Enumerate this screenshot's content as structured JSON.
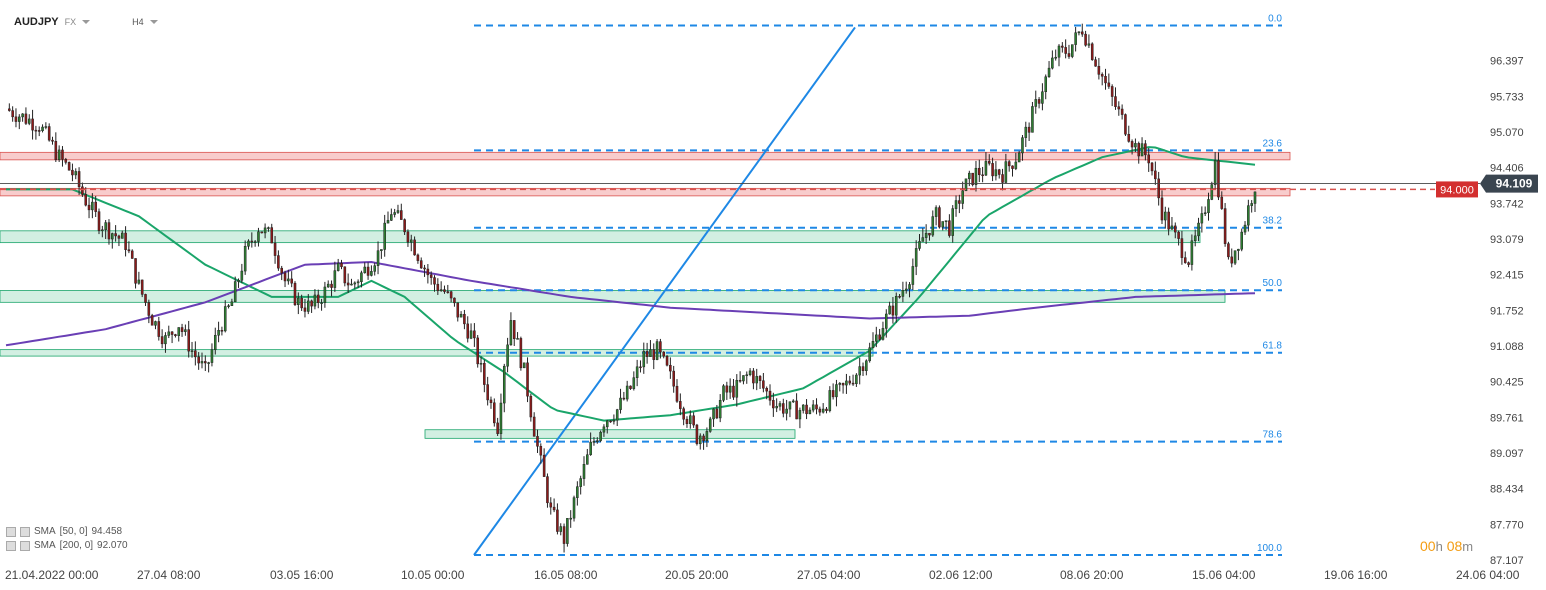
{
  "header": {
    "symbol": "AUDJPY",
    "market": "FX",
    "interval": "H4"
  },
  "price_axis": {
    "labels": [
      "96.397",
      "95.733",
      "95.070",
      "94.406",
      "93.742",
      "93.079",
      "92.415",
      "91.752",
      "91.088",
      "90.425",
      "89.761",
      "89.097",
      "88.434",
      "87.770",
      "87.107"
    ],
    "current_price": "94.109",
    "level_tag": "94.000"
  },
  "time_axis": [
    "21.04.2022  00:00",
    "27.04  08:00",
    "03.05  16:00",
    "10.05  00:00",
    "16.05  08:00",
    "20.05  20:00",
    "27.05  04:00",
    "02.06  12:00",
    "08.06  20:00",
    "15.06  04:00",
    "19.06  16:00",
    "24.06  04:00"
  ],
  "fib_labels": [
    "0.0",
    "23.6",
    "38.2",
    "50.0",
    "61.8",
    "78.6",
    "100.0"
  ],
  "legend": [
    {
      "name": "SMA",
      "params": "[50,  0]",
      "value": "94.458"
    },
    {
      "name": "SMA",
      "params": "[200,  0]",
      "value": "92.070"
    }
  ],
  "timer": {
    "h": "00",
    "h_unit": "h",
    "m": "08",
    "m_unit": "m"
  },
  "colors": {
    "up": "#2e7d32",
    "down": "#8b1a1a",
    "sma50": "#1aa56a",
    "sma200": "#6a3fb5",
    "fib": "#1e88e5",
    "resistance": "#f5b7b7",
    "support": "#bfe8d6"
  },
  "chart_data": {
    "type": "candlestick",
    "symbol": "AUDJPY",
    "interval": "H4",
    "ylim": [
      87.107,
      97.2
    ],
    "current_price": 94.109,
    "horizontal_level": 94.0,
    "close_path": [
      [
        0,
        95.5
      ],
      [
        5,
        95.35
      ],
      [
        10,
        95.2
      ],
      [
        16,
        94.6
      ],
      [
        20,
        94.3
      ],
      [
        24,
        93.8
      ],
      [
        28,
        93.4
      ],
      [
        32,
        93.2
      ],
      [
        36,
        93.0
      ],
      [
        40,
        92.2
      ],
      [
        44,
        91.6
      ],
      [
        48,
        91.2
      ],
      [
        52,
        91.5
      ],
      [
        56,
        91.0
      ],
      [
        60,
        90.6
      ],
      [
        64,
        91.4
      ],
      [
        68,
        91.9
      ],
      [
        72,
        92.8
      ],
      [
        76,
        93.3
      ],
      [
        80,
        93.1
      ],
      [
        84,
        92.3
      ],
      [
        88,
        91.9
      ],
      [
        92,
        91.8
      ],
      [
        96,
        92.1
      ],
      [
        100,
        92.5
      ],
      [
        104,
        92.2
      ],
      [
        108,
        92.5
      ],
      [
        112,
        92.8
      ],
      [
        116,
        93.6
      ],
      [
        120,
        93.3
      ],
      [
        124,
        92.8
      ],
      [
        128,
        92.3
      ],
      [
        132,
        92.1
      ],
      [
        136,
        91.7
      ],
      [
        140,
        91.3
      ],
      [
        144,
        90.4
      ],
      [
        148,
        89.6
      ],
      [
        150,
        90.8
      ],
      [
        152,
        91.6
      ],
      [
        156,
        90.6
      ],
      [
        160,
        89.2
      ],
      [
        164,
        88.0
      ],
      [
        168,
        87.5
      ],
      [
        172,
        88.4
      ],
      [
        176,
        89.2
      ],
      [
        180,
        89.7
      ],
      [
        184,
        89.9
      ],
      [
        188,
        90.3
      ],
      [
        192,
        90.9
      ],
      [
        196,
        91.0
      ],
      [
        200,
        90.5
      ],
      [
        204,
        89.9
      ],
      [
        208,
        89.4
      ],
      [
        212,
        89.6
      ],
      [
        216,
        90.2
      ],
      [
        220,
        90.3
      ],
      [
        224,
        90.6
      ],
      [
        228,
        90.3
      ],
      [
        232,
        90.0
      ],
      [
        236,
        89.9
      ],
      [
        240,
        89.9
      ],
      [
        244,
        89.9
      ],
      [
        248,
        90.1
      ],
      [
        252,
        90.3
      ],
      [
        256,
        90.6
      ],
      [
        260,
        91.0
      ],
      [
        264,
        91.5
      ],
      [
        268,
        91.9
      ],
      [
        272,
        92.4
      ],
      [
        276,
        93.1
      ],
      [
        280,
        93.5
      ],
      [
        284,
        93.3
      ],
      [
        288,
        94.0
      ],
      [
        292,
        94.3
      ],
      [
        296,
        94.4
      ],
      [
        300,
        94.3
      ],
      [
        304,
        94.6
      ],
      [
        308,
        95.2
      ],
      [
        312,
        95.9
      ],
      [
        316,
        96.5
      ],
      [
        320,
        96.6
      ],
      [
        324,
        97.0
      ],
      [
        328,
        96.4
      ],
      [
        332,
        95.8
      ],
      [
        336,
        95.3
      ],
      [
        340,
        94.8
      ],
      [
        344,
        94.6
      ],
      [
        348,
        93.6
      ],
      [
        352,
        93.1
      ],
      [
        356,
        92.7
      ],
      [
        360,
        93.4
      ],
      [
        364,
        94.5
      ],
      [
        368,
        92.6
      ],
      [
        372,
        93.2
      ],
      [
        376,
        94.1
      ]
    ],
    "fibonacci": {
      "high": 97.05,
      "low": 87.2,
      "levels": [
        0.0,
        23.6,
        38.2,
        50.0,
        61.8,
        78.6,
        100.0
      ]
    },
    "zones": [
      {
        "kind": "resistance",
        "from": 94.55,
        "to": 94.69
      },
      {
        "kind": "resistance",
        "from": 93.88,
        "to": 94.02
      },
      {
        "kind": "support",
        "from": 93.01,
        "to": 93.23
      },
      {
        "kind": "support",
        "from": 91.9,
        "to": 92.12
      },
      {
        "kind": "support",
        "from": 90.9,
        "to": 91.02
      },
      {
        "kind": "support",
        "from": 89.37,
        "to": 89.53
      }
    ],
    "sma": [
      {
        "period": 50,
        "value": 94.458,
        "path": [
          [
            0,
            94.0
          ],
          [
            20,
            94.0
          ],
          [
            40,
            93.5
          ],
          [
            60,
            92.6
          ],
          [
            80,
            92.0
          ],
          [
            100,
            92.0
          ],
          [
            110,
            92.3
          ],
          [
            120,
            92.0
          ],
          [
            135,
            91.2
          ],
          [
            150,
            90.6
          ],
          [
            165,
            89.9
          ],
          [
            180,
            89.7
          ],
          [
            200,
            89.8
          ],
          [
            220,
            90.0
          ],
          [
            240,
            90.3
          ],
          [
            260,
            91.0
          ],
          [
            275,
            92.0
          ],
          [
            295,
            93.5
          ],
          [
            315,
            94.2
          ],
          [
            330,
            94.6
          ],
          [
            345,
            94.8
          ],
          [
            355,
            94.6
          ],
          [
            376,
            94.46
          ]
        ]
      },
      {
        "period": 200,
        "value": 92.07,
        "path": [
          [
            0,
            91.1
          ],
          [
            30,
            91.4
          ],
          [
            60,
            91.9
          ],
          [
            90,
            92.6
          ],
          [
            110,
            92.65
          ],
          [
            140,
            92.3
          ],
          [
            170,
            92.0
          ],
          [
            200,
            91.8
          ],
          [
            230,
            91.7
          ],
          [
            260,
            91.6
          ],
          [
            290,
            91.65
          ],
          [
            310,
            91.8
          ],
          [
            340,
            92.0
          ],
          [
            376,
            92.07
          ]
        ]
      }
    ],
    "x_axis_labels": [
      "21.04.2022  00:00",
      "27.04  08:00",
      "03.05  16:00",
      "10.05  00:00",
      "16.05  08:00",
      "20.05  20:00",
      "27.05  04:00",
      "02.06  12:00",
      "08.06  20:00",
      "15.06  04:00",
      "19.06  16:00",
      "24.06  04:00"
    ]
  }
}
